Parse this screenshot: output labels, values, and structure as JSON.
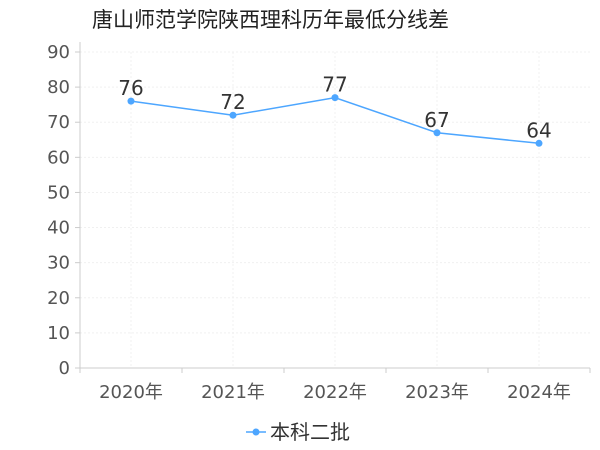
{
  "title": "唐山师范学院陕西理科历年最低分线差",
  "chart_data": {
    "type": "line",
    "title": "唐山师范学院陕西理科历年最低分线差",
    "categories": [
      "2020年",
      "2021年",
      "2022年",
      "2023年",
      "2024年"
    ],
    "series": [
      {
        "name": "本科二批",
        "values": [
          76,
          72,
          77,
          67,
          64
        ],
        "color": "#4da6ff"
      }
    ],
    "ylim": [
      0,
      90
    ],
    "yticks": [
      0,
      10,
      20,
      30,
      40,
      50,
      60,
      70,
      80,
      90
    ],
    "grid": true,
    "legend": "bottom-center",
    "data_labels": true
  }
}
